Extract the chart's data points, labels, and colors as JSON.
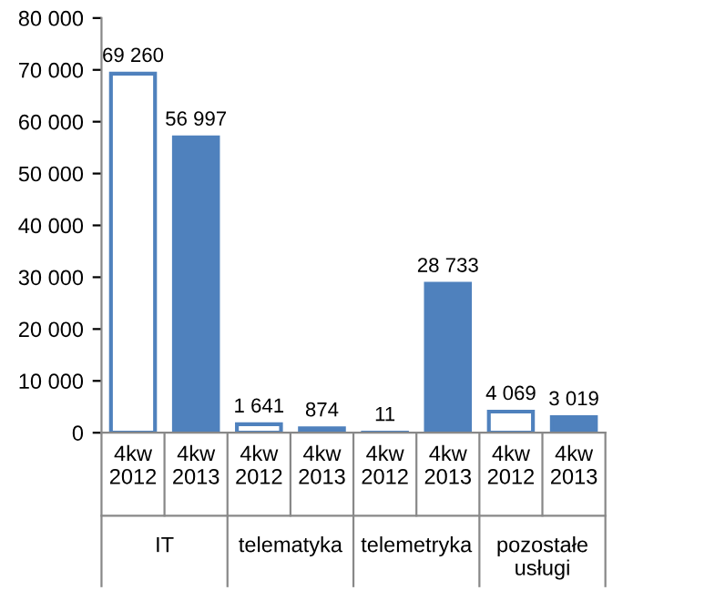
{
  "chart_data": {
    "type": "bar",
    "categories": [
      "IT",
      "telematyka",
      "telemetryka",
      "pozostałe usługi"
    ],
    "series": [
      {
        "name": "4kw 2012",
        "color": "#ffffff",
        "values": [
          69260,
          1641,
          11,
          4069
        ],
        "value_labels": [
          "69 260",
          "1 641",
          "11",
          "4 069"
        ]
      },
      {
        "name": "4kw 2013",
        "color": "#4f81bd",
        "values": [
          56997,
          874,
          28733,
          3019
        ],
        "value_labels": [
          "56 997",
          "874",
          "28 733",
          "3 019"
        ]
      }
    ],
    "ylim": [
      0,
      80000
    ],
    "yticks": [
      0,
      {
        "value": 10000,
        "label": "10 000"
      },
      {
        "value": 20000,
        "label": "20 000"
      },
      {
        "value": 30000,
        "label": "30 000"
      },
      {
        "value": 40000,
        "label": "40 000"
      },
      {
        "value": 50000,
        "label": "50 000"
      },
      {
        "value": 60000,
        "label": "60 000"
      },
      {
        "value": 70000,
        "label": "70 000"
      },
      {
        "value": 80000,
        "label": "80 000"
      }
    ],
    "grid": false,
    "legend": false
  }
}
